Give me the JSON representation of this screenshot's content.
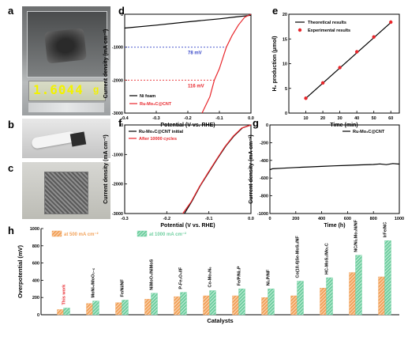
{
  "figure": {
    "panel_letters": [
      "a",
      "b",
      "c",
      "d",
      "e",
      "f",
      "g",
      "h"
    ],
    "photo_a_readout": "1.6044",
    "photo_a_unit": "g"
  },
  "chart_data": [
    {
      "panel": "d",
      "type": "line",
      "xlabel": "Potential (V vs. RHE)",
      "ylabel": "Current density (mA cm⁻²)",
      "xlim": [
        -0.4,
        0.0
      ],
      "ylim": [
        -3000,
        0
      ],
      "xticks": [
        "-0.4",
        "-0.3",
        "-0.2",
        "-0.1",
        "0.0"
      ],
      "yticks": [
        "-3000",
        "-2000",
        "-1000",
        "0"
      ],
      "series": [
        {
          "name": "Ni foam",
          "color": "#000000",
          "x": [
            -0.4,
            -0.3,
            -0.2,
            -0.1,
            -0.05,
            0.0
          ],
          "y": [
            -420,
            -330,
            -230,
            -140,
            -85,
            -30
          ]
        },
        {
          "name": "Ru-Mo₂C@CNT",
          "color": "#e8262b",
          "x": [
            -0.155,
            -0.13,
            -0.116,
            -0.1,
            -0.078,
            -0.06,
            -0.04,
            -0.02,
            0.0
          ],
          "y": [
            -3000,
            -2500,
            -2000,
            -1650,
            -1000,
            -650,
            -330,
            -90,
            0
          ]
        }
      ],
      "annotations": [
        {
          "text": "78 mV",
          "color": "#3848c8",
          "y": -1000
        },
        {
          "text": "116 mV",
          "color": "#e8262b",
          "y": -2000
        }
      ]
    },
    {
      "panel": "e",
      "type": "scatter",
      "xlabel": "Time (min)",
      "ylabel": "H₂ production (μmol)",
      "xlim": [
        0,
        65
      ],
      "ylim": [
        0,
        20
      ],
      "xticks": [
        "10",
        "20",
        "30",
        "40",
        "50",
        "60"
      ],
      "yticks": [
        "0",
        "5",
        "10",
        "15",
        "20"
      ],
      "series": [
        {
          "name": "Theoretical results",
          "color": "#000000",
          "kind": "line",
          "x": [
            10,
            60
          ],
          "y": [
            3.0,
            18.3
          ]
        },
        {
          "name": "Experimental results",
          "color": "#e8262b",
          "kind": "points",
          "x": [
            10,
            20,
            30,
            40,
            50,
            60
          ],
          "y": [
            3.0,
            6.1,
            9.2,
            12.4,
            15.4,
            18.4
          ]
        }
      ]
    },
    {
      "panel": "f",
      "type": "line",
      "xlabel": "Potential (V vs. RHE)",
      "ylabel": "Current density (mA cm⁻²)",
      "xlim": [
        -0.3,
        0.0
      ],
      "ylim": [
        -3000,
        0
      ],
      "xticks": [
        "-0.3",
        "-0.2",
        "-0.1",
        "0.0"
      ],
      "yticks": [
        "-3000",
        "-2000",
        "-1000",
        "0"
      ],
      "series": [
        {
          "name": "Ru-Mo₂C@CNT initial",
          "color": "#000000",
          "x": [
            -0.158,
            -0.14,
            -0.12,
            -0.1,
            -0.08,
            -0.06,
            -0.04,
            -0.02,
            0.0
          ],
          "y": [
            -3000,
            -2580,
            -2050,
            -1600,
            -1150,
            -720,
            -370,
            -100,
            0
          ]
        },
        {
          "name": "After 10000 cycles",
          "color": "#e8262b",
          "x": [
            -0.162,
            -0.142,
            -0.122,
            -0.102,
            -0.082,
            -0.062,
            -0.042,
            -0.022,
            0.0
          ],
          "y": [
            -3000,
            -2600,
            -2080,
            -1620,
            -1170,
            -740,
            -380,
            -105,
            0
          ]
        }
      ]
    },
    {
      "panel": "g",
      "type": "line",
      "xlabel": "Time (h)",
      "ylabel": "Current density (mA cm⁻²)",
      "xlim": [
        0,
        1000
      ],
      "ylim": [
        -1000,
        0
      ],
      "xticks": [
        "0",
        "200",
        "400",
        "600",
        "800",
        "1000"
      ],
      "yticks": [
        "-1000",
        "-800",
        "-600",
        "-400",
        "-200",
        "0"
      ],
      "series": [
        {
          "name": "Ru-Mo₂C@CNT",
          "color": "#000000",
          "x": [
            0,
            20,
            100,
            200,
            300,
            400,
            500,
            600,
            700,
            800,
            850,
            900,
            950,
            1000
          ],
          "y": [
            -505,
            -495,
            -488,
            -480,
            -474,
            -468,
            -462,
            -456,
            -451,
            -446,
            -440,
            -448,
            -436,
            -442
          ]
        }
      ]
    },
    {
      "panel": "h",
      "type": "bar",
      "xlabel": "Catalysts",
      "ylabel": "Overpotential (mV)",
      "ylim": [
        0,
        1000
      ],
      "yticks": [
        "0",
        "200",
        "400",
        "600",
        "800",
        "1000"
      ],
      "categories": [
        "This work",
        "MoNi₄/MoO₃₋ₓ",
        "Fe/Ni/NF",
        "NiMoO₄/NiMoS",
        "P-Fe₃O₄/IF",
        "Co-Mo₅N₆",
        "Fe/P/Ni₂P",
        "Ni₂P/NF",
        "Co(10.4)Se-MoS₂/NF",
        "HC-MoS₂/Mo₂C",
        "NC/Ni₂Mo₃N/NF",
        "IrFe/NC"
      ],
      "highlight_category": "This work",
      "series": [
        {
          "name": "at 500 mA cm⁻²",
          "color": "#f2a25a",
          "values": [
            60,
            130,
            140,
            180,
            210,
            220,
            220,
            200,
            220,
            310,
            490,
            440
          ]
        },
        {
          "name": "at 1000 mA cm⁻²",
          "color": "#6fcfa0",
          "values": [
            78,
            160,
            170,
            250,
            260,
            280,
            300,
            300,
            390,
            430,
            690,
            860
          ]
        }
      ]
    }
  ]
}
